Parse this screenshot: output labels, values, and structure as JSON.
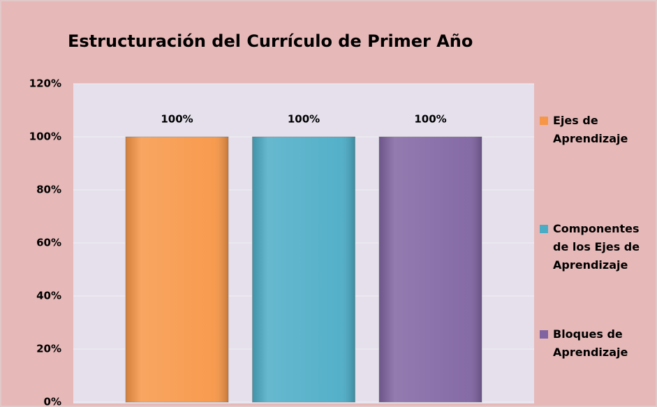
{
  "chart_data": {
    "type": "bar",
    "title": "Estructuración del Currículo de Primer Año",
    "series": [
      {
        "name": "Ejes de Aprendizaje",
        "color": "#f79646",
        "values": [
          100
        ],
        "value_labels": [
          "100%"
        ]
      },
      {
        "name": "Componentes de los Ejes de Aprendizaje",
        "color": "#4bacc6",
        "values": [
          100
        ],
        "value_labels": [
          "100%"
        ]
      },
      {
        "name": "Bloques de Aprendizaje",
        "color": "#8064a2",
        "values": [
          100
        ],
        "value_labels": [
          "100%"
        ]
      }
    ],
    "ylim": [
      0,
      120
    ],
    "yticks": [
      {
        "value": 0,
        "label": "0%"
      },
      {
        "value": 20,
        "label": "20%"
      },
      {
        "value": 40,
        "label": "40%"
      },
      {
        "value": 60,
        "label": "60%"
      },
      {
        "value": 80,
        "label": "80%"
      },
      {
        "value": 100,
        "label": "100%"
      },
      {
        "value": 120,
        "label": "120%"
      }
    ],
    "grid": true,
    "legend": "right"
  }
}
